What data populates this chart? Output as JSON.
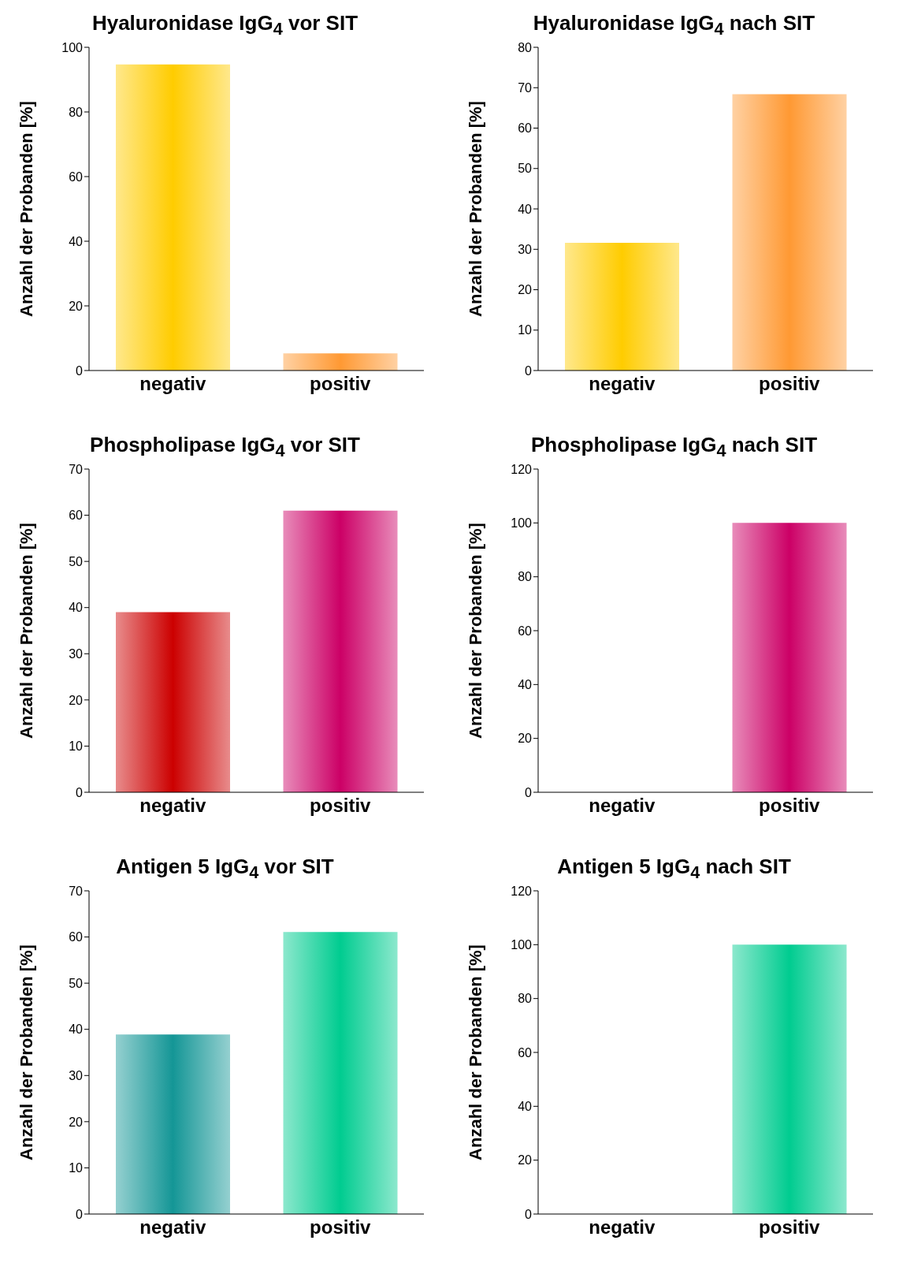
{
  "chart_data": [
    {
      "type": "bar",
      "title": "Hyaluronidase IgG$_{4}$ vor SIT",
      "ylabel": "Anzahl der Probanden [%]",
      "categories": [
        "negativ",
        "positiv"
      ],
      "values": [
        94.7,
        5.3
      ],
      "colors": [
        "#ffcc00",
        "#ff9933"
      ],
      "ylim": [
        0,
        100
      ],
      "yticks": [
        0,
        20,
        40,
        60,
        80,
        100
      ],
      "grid": false,
      "legend": false
    },
    {
      "type": "bar",
      "title": "Hyaluronidase IgG$_{4}$ nach SIT",
      "ylabel": "Anzahl der Probanden [%]",
      "categories": [
        "negativ",
        "positiv"
      ],
      "values": [
        31.6,
        68.4
      ],
      "colors": [
        "#ffcc00",
        "#ff9933"
      ],
      "ylim": [
        0,
        80
      ],
      "yticks": [
        0,
        10,
        20,
        30,
        40,
        50,
        60,
        70,
        80
      ],
      "grid": false,
      "legend": false
    },
    {
      "type": "bar",
      "title": "Phospholipase IgG$_{4}$ vor SIT",
      "ylabel": "Anzahl der Probanden [%]",
      "categories": [
        "negativ",
        "positiv"
      ],
      "values": [
        39,
        61
      ],
      "colors": [
        "#cc0000",
        "#cc0066"
      ],
      "ylim": [
        0,
        70
      ],
      "yticks": [
        0,
        10,
        20,
        30,
        40,
        50,
        60,
        70
      ],
      "grid": false,
      "legend": false
    },
    {
      "type": "bar",
      "title": "Phospholipase IgG$_{4}$ nach SIT",
      "ylabel": "Anzahl der Probanden [%]",
      "categories": [
        "negativ",
        "positiv"
      ],
      "values": [
        0,
        100
      ],
      "colors": [
        "#cc0066",
        "#cc0066"
      ],
      "ylim": [
        0,
        120
      ],
      "yticks": [
        0,
        20,
        40,
        60,
        80,
        100,
        120
      ],
      "grid": false,
      "legend": false
    },
    {
      "type": "bar",
      "title": "Antigen 5 IgG$_{4}$ vor SIT",
      "ylabel": "Anzahl der Probanden [%]",
      "categories": [
        "negativ",
        "positiv"
      ],
      "values": [
        38.9,
        61.1
      ],
      "colors": [
        "#149696",
        "#00cc90"
      ],
      "ylim": [
        0,
        70
      ],
      "yticks": [
        0,
        10,
        20,
        30,
        40,
        50,
        60,
        70
      ],
      "grid": false,
      "legend": false
    },
    {
      "type": "bar",
      "title": "Antigen 5 IgG$_{4}$ nach SIT",
      "ylabel": "Anzahl der Probanden [%]",
      "categories": [
        "negativ",
        "positiv"
      ],
      "values": [
        0,
        100
      ],
      "colors": [
        "#00cc90",
        "#00cc90"
      ],
      "ylim": [
        0,
        120
      ],
      "yticks": [
        0,
        20,
        40,
        60,
        80,
        100,
        120
      ],
      "grid": false,
      "legend": false
    }
  ]
}
